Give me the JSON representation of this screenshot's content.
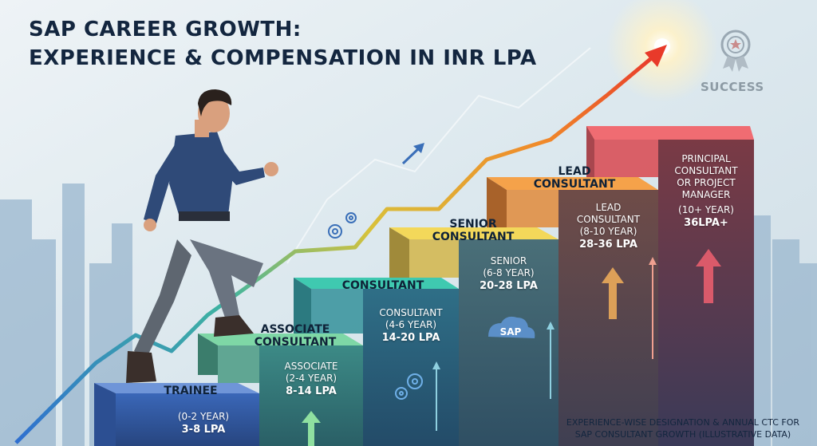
{
  "title": {
    "line1": "SAP CAREER GROWTH:",
    "line2": "EXPERIENCE & COMPENSATION IN INR LPA"
  },
  "success_label": "SUCCESS",
  "steps": [
    {
      "top_label": [
        "TRAINEE"
      ],
      "face_name": [],
      "years": "(0-2 YEAR)",
      "pay": "3-8 LPA"
    },
    {
      "top_label": [
        "ASSOCIATE",
        "CONSULTANT"
      ],
      "face_name": [
        "ASSOCIATE"
      ],
      "years": "(2-4 YEAR)",
      "pay": "8-14 LPA"
    },
    {
      "top_label": [
        "CONSULTANT"
      ],
      "face_name": [
        "CONSULTANT"
      ],
      "years": "(4-6 YEAR)",
      "pay": "14-20 LPA"
    },
    {
      "top_label": [
        "SENIOR",
        "CONSULTANT"
      ],
      "face_name": [
        "SENIOR"
      ],
      "years": "(6-8 YEAR)",
      "pay": "20-28 LPA"
    },
    {
      "top_label": [
        "LEAD",
        "CONSULTANT"
      ],
      "face_name": [
        "LEAD",
        "CONSULTANT"
      ],
      "years": "(8-10 YEAR)",
      "pay": "28-36 LPA"
    },
    {
      "top_label": [],
      "face_name": [
        "PRINCIPAL",
        "CONSULTANT",
        "OR PROJECT",
        "MANAGER"
      ],
      "years": "(10+ YEAR)",
      "pay": "36LPA+"
    }
  ],
  "sap_logo_text": "SAP",
  "footnote": {
    "line1": "EXPERIENCE-WISE DESIGNATION & ANNUAL CTC FOR",
    "line2": "SAP CONSULTANT GROWTH (ILLUSTRATIVE DATA)"
  },
  "colors": {
    "trainee": "#3e6fc0",
    "associate": "#5fae8a",
    "consultant": "#2f8a9a",
    "senior": "#e3c24a",
    "lead": "#e08a3a",
    "principal": "#c8474f",
    "title": "#13263f"
  }
}
